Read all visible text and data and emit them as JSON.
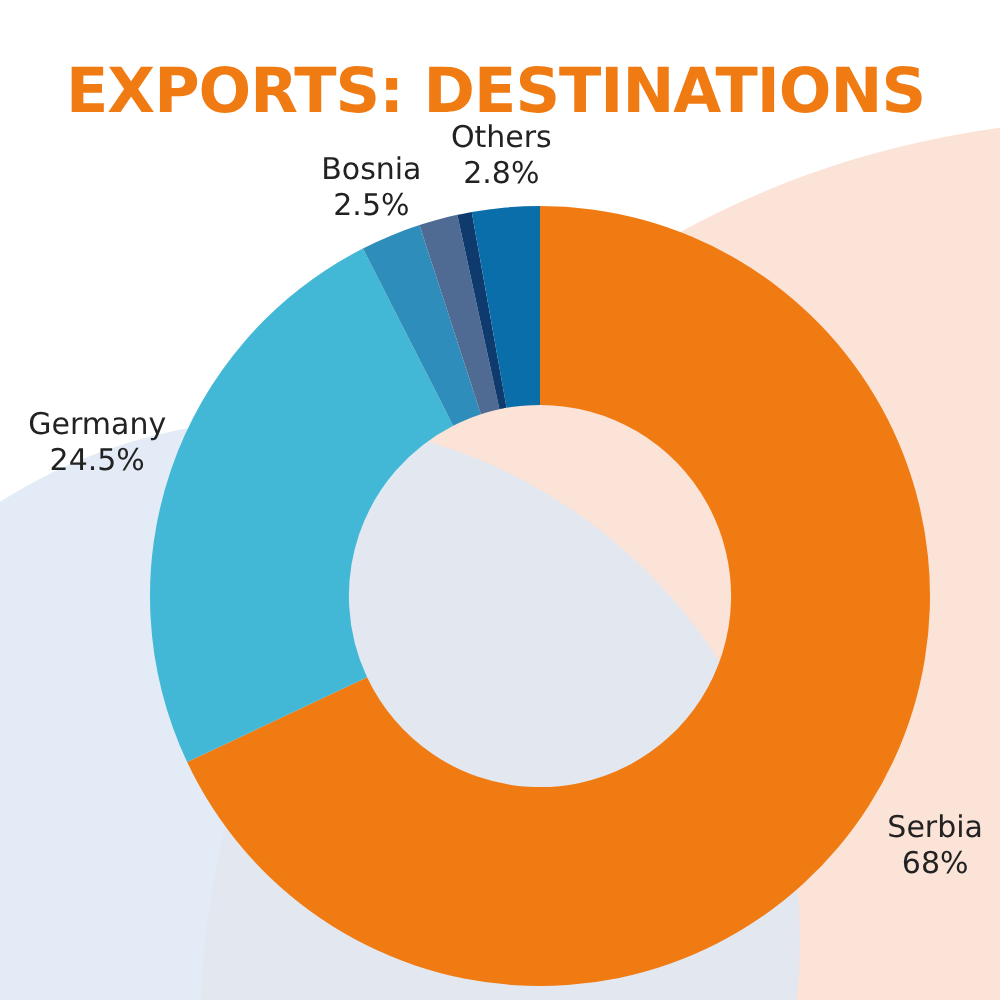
{
  "chart_data": {
    "type": "donut",
    "title": "EXPORTS: DESTINATIONS",
    "categories": [
      "Serbia",
      "Germany",
      "Bosnia",
      null,
      null,
      "Others"
    ],
    "values": [
      68,
      24.5,
      2.5,
      1.6,
      0.6,
      2.8
    ],
    "value_labels": [
      "68%",
      "24.5%",
      "2.5%",
      null,
      null,
      "2.8%"
    ],
    "colors": [
      "#f07b12",
      "#42b8d6",
      "#2e8dbb",
      "#4f6b94",
      "#0e3a6e",
      "#0a6eab"
    ],
    "legend": false
  }
}
